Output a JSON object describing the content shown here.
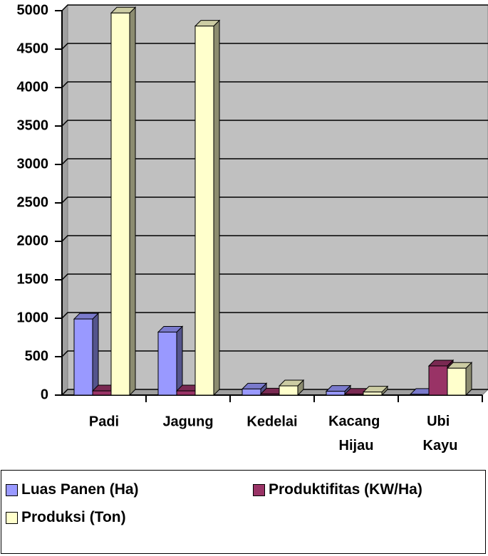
{
  "chart_data": {
    "type": "bar3d",
    "categories": [
      "Padi",
      "Jagung",
      "Kedelai",
      "Kacang Hijau",
      "Ubi Kayu"
    ],
    "series": [
      {
        "name": "Luas Panen (Ha)",
        "color": "#9999ff",
        "values": [
          990,
          820,
          80,
          50,
          10
        ]
      },
      {
        "name": "Produktifitas (KW/Ha)",
        "color": "#993366",
        "values": [
          55,
          55,
          15,
          12,
          380
        ]
      },
      {
        "name": "Produksi (Ton)",
        "color": "#ffffcc",
        "values": [
          4970,
          4800,
          120,
          40,
          350
        ]
      }
    ],
    "ylim": [
      0,
      5000
    ],
    "yticks": [
      0,
      500,
      1000,
      1500,
      2000,
      2500,
      3000,
      3500,
      4000,
      4500,
      5000
    ],
    "grid": true,
    "legend": "bottom"
  }
}
